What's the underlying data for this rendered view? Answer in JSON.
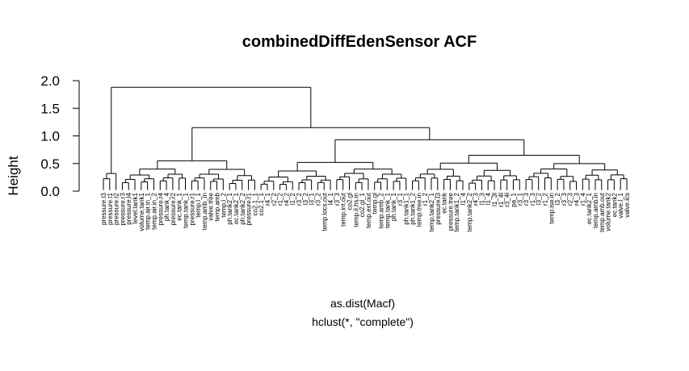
{
  "chart": {
    "title": "combinedDiffEdenSensor ACF",
    "ylabel": "Height",
    "xlabel": "as.dist(Macf)",
    "sublabel": "hclust(*, \"complete\")"
  },
  "chart_data": {
    "type": "dendrogram",
    "title": "combinedDiffEdenSensor ACF",
    "xlabel": "as.dist(Macf)",
    "ylabel": "Height",
    "subtitle": "hclust(*, \"complete\")",
    "ylim": [
      0,
      2.0
    ],
    "yticks": [
      0.0,
      0.5,
      1.0,
      1.5,
      2.0
    ],
    "ytick_labels": [
      "0.0",
      "0.5",
      "1.0",
      "1.5",
      "2.0"
    ],
    "leaves": [
      "pressure.t3",
      "pressure.t1",
      "pressure.t2",
      "pressure.r3",
      "pressure.l4",
      "level.tank1",
      "volume.tank1",
      "temp.air.in_1",
      "temp.air.in_2",
      "pressure.r4",
      "ph.tank_4",
      "pressure.r2",
      "ec.tank_1",
      "temp.tank_1",
      "pressure.r1",
      "temp.l_1",
      "temp.amb_in",
      "valve.tree",
      "temp.amb",
      "temp.l_2",
      "ph.tank2_1",
      "ec.tank2_1",
      "ph.tank2_2",
      "pressure.r1",
      "co2.1_1",
      "co2.1_1",
      "r4_1",
      "r2_2",
      "r1_2",
      "r4_2",
      "l1_2",
      "r3_2",
      "l3_2",
      "l3_1",
      "r3_2",
      "temp.locs.out",
      "l4_1",
      "r3_3",
      "temp.int.out",
      "co2.gl",
      "temp.il.hs.in",
      "co2.gl_1",
      "temp.ext.out",
      "temp.gl",
      "temp.amb_2",
      "temp.tank_1",
      "ph.tank_1",
      "r3_1",
      "ph.tank1_1",
      "ph.tank1_2",
      "temp.tree.in",
      "r1_2",
      "temp.tank2_1",
      "pressure.l3",
      "ec.tank",
      "pressure.tree",
      "temp.tank1_2",
      "l1_4",
      "temp.tank2_2",
      "r4_3",
      "l1_3",
      "l1_4",
      "l1_3l",
      "r1_4l",
      "r3_4l",
      "pa_1",
      "r3_1",
      "r3_3",
      "r1_3",
      "l3_2",
      "r1_2",
      "temp.ise.in",
      "l3_2",
      "r3_3",
      "r2_3",
      "r4_3",
      "r1_4",
      "ec.tank2_1",
      "temp.amb.in",
      "temp.amb.out",
      "volume.tank2",
      "ec.tank2",
      "valve.l_1",
      "valve.ics"
    ],
    "merges_note": "complete-linkage hierarchical clustering of sensor ACF distances; root height ~1.88"
  }
}
